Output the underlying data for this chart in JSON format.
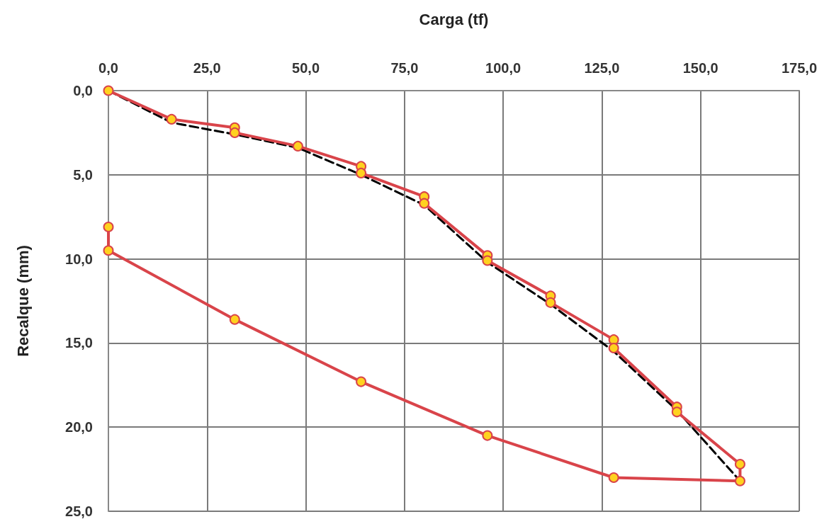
{
  "chart_data": {
    "type": "line",
    "xlabel": "Carga (tf)",
    "ylabel": "Recalque (mm)",
    "xlim": [
      0,
      175
    ],
    "ylim": [
      25,
      0
    ],
    "xticks": [
      {
        "value": 0,
        "label": "0,0"
      },
      {
        "value": 25,
        "label": "25,0"
      },
      {
        "value": 50,
        "label": "50,0"
      },
      {
        "value": 75,
        "label": "75,0"
      },
      {
        "value": 100,
        "label": "100,0"
      },
      {
        "value": 125,
        "label": "125,0"
      },
      {
        "value": 150,
        "label": "150,0"
      },
      {
        "value": 175,
        "label": "175,0"
      }
    ],
    "yticks": [
      {
        "value": 0,
        "label": "0,0"
      },
      {
        "value": 5,
        "label": "5,0"
      },
      {
        "value": 10,
        "label": "10,0"
      },
      {
        "value": 15,
        "label": "15,0"
      },
      {
        "value": 20,
        "label": "20,0"
      },
      {
        "value": 25,
        "label": "25,0"
      }
    ],
    "grid": true,
    "series": [
      {
        "color": "#000000",
        "line_style": "dashed",
        "marker": "none",
        "x": [
          0,
          16,
          32,
          48,
          64,
          80,
          96,
          112,
          128,
          144,
          160
        ],
        "values": [
          0,
          1.9,
          2.6,
          3.4,
          5.0,
          6.8,
          10.2,
          12.7,
          15.5,
          19.0,
          23.2
        ]
      },
      {
        "color": "#d9444a",
        "line_style": "solid",
        "marker": "circle",
        "x": [
          0,
          16,
          32,
          32,
          48,
          64,
          64,
          80,
          80,
          96,
          96,
          112,
          112,
          128,
          128,
          144,
          144,
          160,
          160,
          128,
          96,
          64,
          32,
          0,
          0
        ],
        "values": [
          0,
          1.7,
          2.2,
          2.5,
          3.3,
          4.5,
          4.9,
          6.3,
          6.7,
          9.8,
          10.1,
          12.2,
          12.6,
          14.8,
          15.3,
          18.8,
          19.1,
          22.2,
          23.2,
          23.0,
          20.5,
          17.3,
          13.6,
          9.5,
          8.1
        ]
      }
    ]
  }
}
